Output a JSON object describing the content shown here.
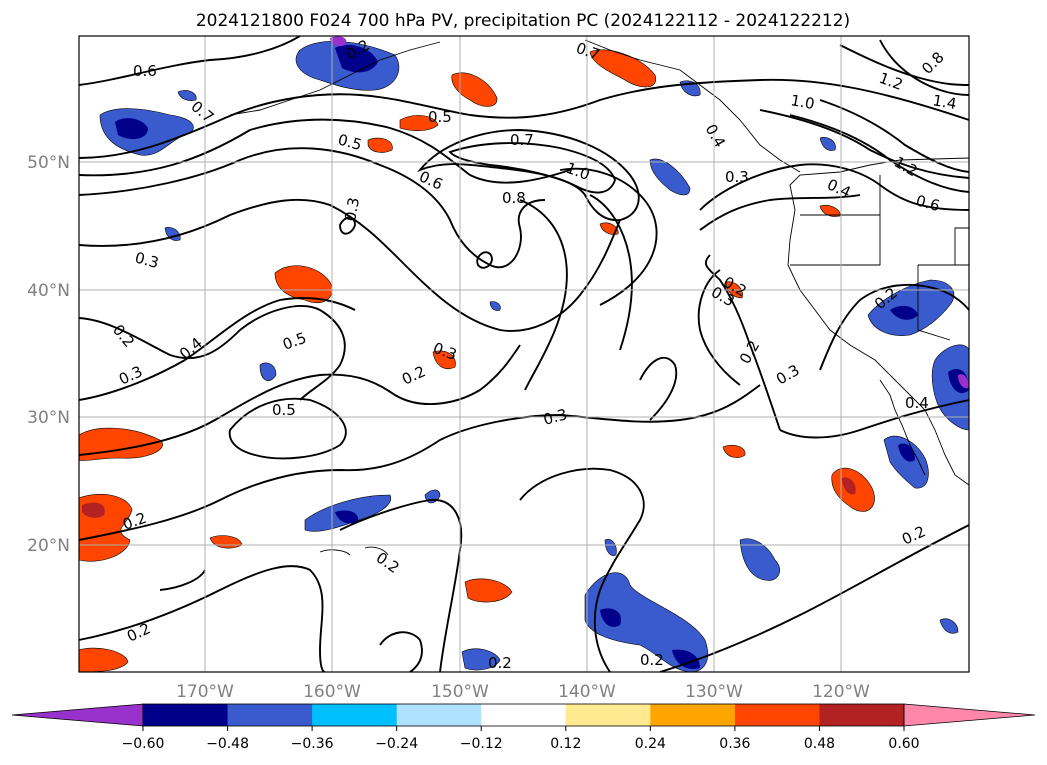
{
  "title": "2024121800 F024 700 hPa PV, precipitation PC (2024122112 - 2024122212)",
  "lat_labels": [
    "50°N",
    "40°N",
    "30°N",
    "20°N"
  ],
  "lon_labels": [
    "170°W",
    "160°W",
    "150°W",
    "140°W",
    "130°W",
    "120°W"
  ],
  "colorbar": {
    "colors": [
      "#9932cc",
      "#00008b",
      "#3a5bcd",
      "#00bfff",
      "#b0e2ff",
      "#ffffff",
      "#ffe991",
      "#ffa500",
      "#ff4500",
      "#b22222",
      "#ff88aa"
    ],
    "ticks": [
      "−0.60",
      "−0.48",
      "−0.36",
      "−0.24",
      "−0.12",
      "0.12",
      "0.24",
      "0.36",
      "0.48",
      "0.60"
    ]
  },
  "contour_labels": [
    "0.6",
    "0.7",
    "0.5",
    "0.5",
    "0.7",
    "1.0",
    "0.6",
    "0.8",
    "0.3",
    "0.3",
    "0.2",
    "0.4",
    "0.3",
    "0.5",
    "0.5",
    "0.3",
    "0.2",
    "0.3",
    "0.2",
    "0.2",
    "0.2",
    "0.2",
    "0.2",
    "0.2",
    "0.2",
    "0.3",
    "0.3",
    "0.2",
    "0.4",
    "0.6",
    "1.0",
    "1.2",
    "1.4",
    "1.2",
    "0.8",
    "0.7",
    "0.4",
    "0.3",
    "0.2",
    "0.4",
    "0.2"
  ]
}
